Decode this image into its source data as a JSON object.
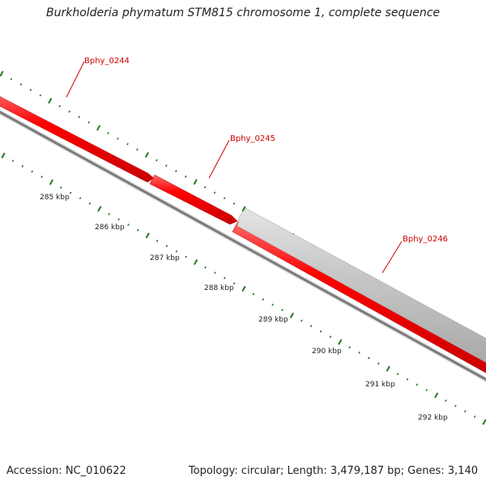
{
  "title": "Burkholderia phymatum STM815 chromosome 1, complete sequence",
  "footer": {
    "accession": "Accession: NC_010622",
    "stats": "Topology: circular; Length: 3,479,187 bp; Genes: 3,140"
  },
  "colors": {
    "gene_forward": "#ff0000",
    "gene_reverse": "#c8c8c8",
    "backbone": "#7a7a7a",
    "tick": "#1e7a1e",
    "gene_label": "#cc0000"
  },
  "ticks": [
    "285 kbp",
    "286 kbp",
    "287 kbp",
    "288 kbp",
    "289 kbp",
    "290 kbp",
    "291 kbp",
    "292 kbp"
  ],
  "genes": [
    {
      "name": "Bphy_0244",
      "strand": "forward"
    },
    {
      "name": "Bphy_0245",
      "strand": "forward"
    },
    {
      "name": "Bphy_0246",
      "strand": "reverse"
    }
  ]
}
